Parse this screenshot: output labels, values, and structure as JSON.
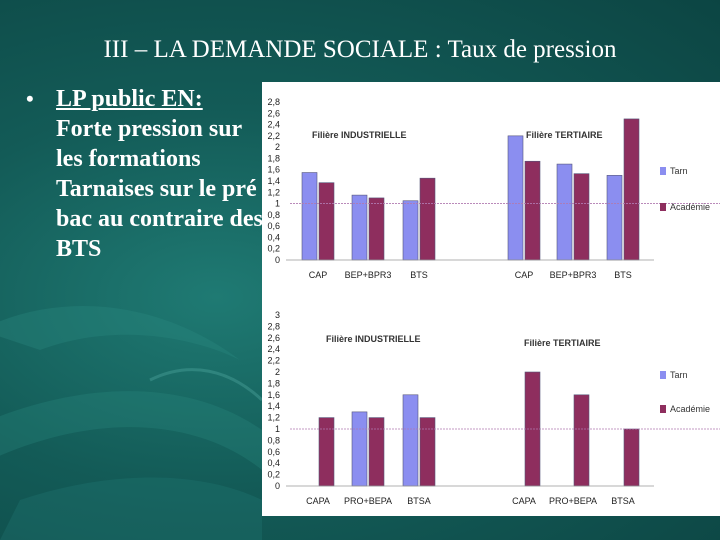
{
  "slide": {
    "title": "III –  LA DEMANDE SOCIALE : Taux de pression",
    "bullet_heading": "LP public EN:",
    "bullet_body": "Forte pression sur les formations Tarnaises sur le pré bac au contraire des BTS"
  },
  "colors": {
    "tarn": "#8b8ef0",
    "academie": "#8e2e5e",
    "reference_line": "#b07ab0"
  },
  "chart_data": [
    {
      "type": "bar",
      "ylim": [
        0,
        2.8
      ],
      "yticks": [
        "0",
        "0,2",
        "0,4",
        "0,6",
        "0,8",
        "1",
        "1,2",
        "1,4",
        "1,6",
        "1,8",
        "2",
        "2,2",
        "2,4",
        "2,6",
        "2,8"
      ],
      "reference_line": 1,
      "groups": [
        {
          "label": "Filière INDUSTRIELLE",
          "categories": [
            "CAP",
            "BEP+BPR3",
            "BTS"
          ]
        },
        {
          "label": "Filière TERTIAIRE",
          "categories": [
            "CAP",
            "BEP+BPR3",
            "BTS"
          ]
        }
      ],
      "categories": [
        "CAP",
        "BEP+BPR3",
        "BTS",
        "CAP",
        "BEP+BPR3",
        "BTS"
      ],
      "series": [
        {
          "name": "Tarn",
          "values": [
            1.55,
            1.15,
            1.05,
            2.2,
            1.7,
            1.5
          ]
        },
        {
          "name": "Académie",
          "values": [
            1.37,
            1.1,
            1.45,
            1.75,
            1.53,
            2.5
          ]
        }
      ],
      "legend": "right"
    },
    {
      "type": "bar",
      "ylim": [
        0,
        3
      ],
      "yticks": [
        "0",
        "0,2",
        "0,4",
        "0,6",
        "0,8",
        "1",
        "1,2",
        "1,4",
        "1,6",
        "1,8",
        "2",
        "2,2",
        "2,4",
        "2,6",
        "2,8",
        "3"
      ],
      "reference_line": 1,
      "groups": [
        {
          "label": "Filière INDUSTRIELLE",
          "categories": [
            "CAPA",
            "PRO+BEPA",
            "BTSA"
          ]
        },
        {
          "label": "Filière TERTIAIRE",
          "categories": [
            "CAPA",
            "PRO+BEPA",
            "BTSA"
          ]
        }
      ],
      "categories": [
        "CAPA",
        "PRO+BEPA",
        "BTSA",
        "CAPA",
        "PRO+BEPA",
        "BTSA"
      ],
      "series": [
        {
          "name": "Tarn",
          "values": [
            null,
            1.3,
            1.6,
            null,
            null,
            null
          ]
        },
        {
          "name": "Académie",
          "values": [
            1.2,
            1.2,
            1.2,
            2.0,
            1.6,
            1.0
          ]
        }
      ],
      "legend": "right"
    }
  ]
}
